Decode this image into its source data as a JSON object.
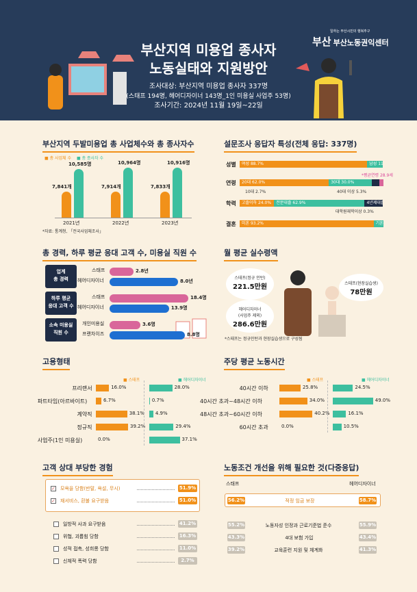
{
  "header": {
    "title_line1": "부산지역 미용업 종사자",
    "title_line2": "노동실태와 지원방안",
    "survey_target": "조사대상: 부산지역 미용업 종사자 337명",
    "survey_detail": "(스태프 194명, 헤어디자이너 143명_1인 미용실 사업주 53명)",
    "survey_period": "조사기간: 2024년 11월 19일~22일",
    "org_tagline": "일하는 부산시민의 행복추구",
    "org_name": "부산노동권익센터",
    "org_logo": "부산"
  },
  "chart_data": [
    {
      "id": "business_workers",
      "type": "bar",
      "title": "부산지역 두발미용업 총 사업체수와 총 종사자수",
      "categories": [
        "2021년",
        "2022년",
        "2023년"
      ],
      "series": [
        {
          "name": "총 사업체 수",
          "values": [
            7841,
            7914,
            7833
          ],
          "labels": [
            "7,841개",
            "7,914개",
            "7,833개"
          ],
          "color": "#f1911a"
        },
        {
          "name": "총 종사자 수",
          "values": [
            10585,
            10964,
            10916
          ],
          "labels": [
            "10,585명",
            "10,964명",
            "10,916명"
          ],
          "color": "#3dbf9f"
        }
      ],
      "note": "*자료: 통계청, 「전국사업체조사」"
    },
    {
      "id": "career",
      "type": "bar",
      "title": "총 경력, 하루 평균 응대 고객 수, 미용실 직원 수",
      "groups": [
        {
          "label": "업계\n총 경력",
          "rows": [
            {
              "name": "스태프",
              "value": 2.8,
              "label": "2.8년",
              "color": "#d9669a"
            },
            {
              "name": "헤어디자이너",
              "value": 8.0,
              "label": "8.0년",
              "color": "#1e6fd1"
            }
          ]
        },
        {
          "label": "하루 평균\n응대 고객 수",
          "rows": [
            {
              "name": "스태프",
              "value": 18.4,
              "label": "18.4명",
              "color": "#d9669a"
            },
            {
              "name": "헤어디자이너",
              "value": 13.9,
              "label": "13.9명",
              "color": "#1e6fd1"
            }
          ]
        },
        {
          "label": "소속 미용실\n직원 수",
          "rows": [
            {
              "name": "개인미용실",
              "value": 3.6,
              "label": "3.6명",
              "color": "#d9669a"
            },
            {
              "name": "프랜차이즈",
              "value": 8.8,
              "label": "8.8명",
              "color": "#1e6fd1"
            }
          ]
        }
      ]
    },
    {
      "id": "employment",
      "type": "bar",
      "title": "고용형태",
      "legend": [
        "스태프",
        "헤어디자이너"
      ],
      "categories": [
        "프리랜서",
        "파트타임(아르바이트)",
        "계약직",
        "정규직",
        "사업주(1인 미용실)"
      ],
      "series": [
        {
          "name": "스태프",
          "values": [
            16.0,
            6.7,
            38.1,
            39.2,
            0.0
          ],
          "labels": [
            "16.0%",
            "6.7%",
            "38.1%",
            "39.2%",
            "0.0%"
          ]
        },
        {
          "name": "헤어디자이너",
          "values": [
            28.0,
            0.7,
            4.9,
            29.4,
            37.1
          ],
          "labels": [
            "28.0%",
            "0.7%",
            "4.9%",
            "29.4%",
            "37.1%"
          ]
        }
      ]
    },
    {
      "id": "hours",
      "type": "bar",
      "title": "주당 평균 노동시간",
      "legend": [
        "스태프",
        "헤어디자이너"
      ],
      "categories": [
        "40시간 이하",
        "40시간 초과~48시간 이하",
        "48시간 초과~60시간 이하",
        "60시간 초과"
      ],
      "series": [
        {
          "name": "스태프",
          "values": [
            25.8,
            34.0,
            40.2,
            0.0
          ],
          "labels": [
            "25.8%",
            "34.0%",
            "40.2%",
            "0.0%"
          ]
        },
        {
          "name": "헤어디자이너",
          "values": [
            24.5,
            49.0,
            16.1,
            10.5
          ],
          "labels": [
            "24.5%",
            "49.0%",
            "16.1%",
            "10.5%"
          ]
        }
      ]
    },
    {
      "id": "respondents",
      "type": "bar",
      "title": "설문조사 응답자 특성(전체 응답: 337명)",
      "rows": [
        {
          "label": "성별",
          "segments": [
            {
              "text": "여성 88.7%",
              "value": 88.7,
              "color": "#f1911a"
            },
            {
              "text": "남성 11.0%",
              "value": 11.0,
              "color": "#3dbf9f"
            }
          ]
        },
        {
          "label": "연령",
          "segments": [
            {
              "text": "20대 62.0%",
              "value": 62.0,
              "color": "#f1911a"
            },
            {
              "text": "30대 30.0%",
              "value": 30.0,
              "color": "#3dbf9f"
            },
            {
              "text": "",
              "value": 5.3,
              "color": "#1f2c45"
            },
            {
              "text": "",
              "value": 2.7,
              "color": "#d9669a"
            }
          ],
          "notes": [
            "*평균연령 28.9세",
            "10대 2.7%",
            "40대 이상 5.3%"
          ]
        },
        {
          "label": "학력",
          "segments": [
            {
              "text": "고졸이하 24.0%",
              "value": 24.0,
              "color": "#f1911a"
            },
            {
              "text": "전문대졸 62.9%",
              "value": 62.9,
              "color": "#3dbf9f"
            },
            {
              "text": "4년제대졸 12.8%",
              "value": 12.8,
              "color": "#1f2c45"
            }
          ],
          "notes": [
            "대학원재학이상 0.3%"
          ]
        },
        {
          "label": "결혼",
          "segments": [
            {
              "text": "미혼 93.2%",
              "value": 93.2,
              "color": "#f1911a"
            },
            {
              "text": "기혼(동거포함) 6.8%",
              "value": 6.8,
              "color": "#3dbf9f"
            }
          ]
        }
      ]
    },
    {
      "id": "wage",
      "type": "table",
      "title": "월 평균 실수령액",
      "items": [
        {
          "label": "스태프(정규 인턴)",
          "value": "221.5",
          "unit": "만원"
        },
        {
          "label": "스태프(현장실습생)",
          "value": "78",
          "unit": "만원"
        },
        {
          "label": "헤어디자이너\n(사업주 제외)",
          "value": "286.6",
          "unit": "만원"
        }
      ],
      "note": "*스태프는 정규인턴과 현장실습생으로 구성됨"
    },
    {
      "id": "unfair",
      "type": "bar",
      "title": "고객 상대 부당한 경험",
      "items": [
        {
          "label": "모욕을 당함(반말, 욕설, 무시)",
          "value": 51.9,
          "text": "51.9%",
          "highlight": true
        },
        {
          "label": "재서비스, 환불 요구받음",
          "value": 51.0,
          "text": "51.0%",
          "highlight": true
        },
        {
          "label": "일방적 사과 요구받음",
          "value": 41.2,
          "text": "41.2%"
        },
        {
          "label": "위협, 괴롭힘 당함",
          "value": 16.3,
          "text": "16.3%"
        },
        {
          "label": "성적 접촉, 성희롱 당함",
          "value": 11.0,
          "text": "11.0%"
        },
        {
          "label": "신체적 폭력 당함",
          "value": 2.7,
          "text": "2.7%"
        }
      ]
    },
    {
      "id": "improve",
      "type": "table",
      "title": "노동조건 개선을 위해 필요한 것(다중응답)",
      "columns": [
        "스태프",
        "헤어디자이너"
      ],
      "rows": [
        {
          "label": "적정 임금 보장",
          "staff": "56.2%",
          "designer": "58.7%",
          "highlight": true
        },
        {
          "label": "노동자성 인정과 근로기준법 준수",
          "staff": "55.2%",
          "designer": "55.9%"
        },
        {
          "label": "4대 보험 가입",
          "staff": "43.3%",
          "designer": "43.4%"
        },
        {
          "label": "교육훈련 지원 및 체계화",
          "staff": "39.2%",
          "designer": "41.3%"
        }
      ]
    }
  ]
}
